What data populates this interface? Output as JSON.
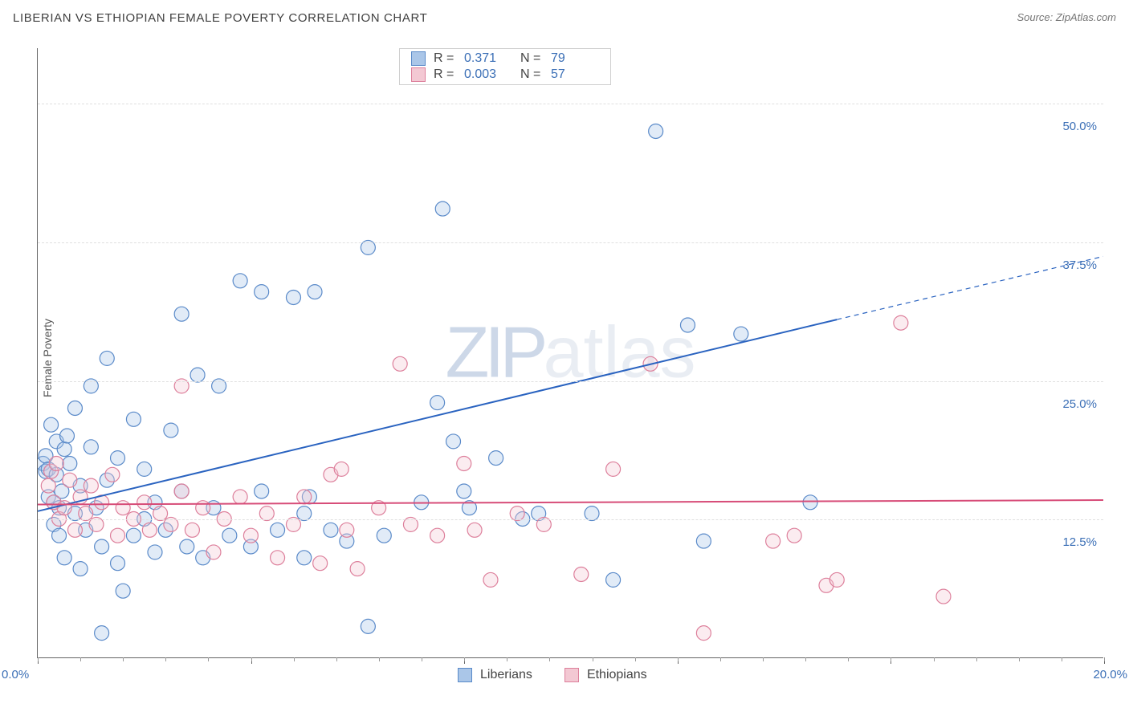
{
  "title": "LIBERIAN VS ETHIOPIAN FEMALE POVERTY CORRELATION CHART",
  "source": "Source: ZipAtlas.com",
  "yaxis_label": "Female Poverty",
  "watermark_zip": "ZIP",
  "watermark_atlas": "atlas",
  "chart": {
    "type": "scatter",
    "xlim": [
      0,
      20
    ],
    "ylim": [
      0,
      55
    ],
    "x_tick_left": "0.0%",
    "x_tick_right": "20.0%",
    "y_ticks": [
      {
        "v": 12.5,
        "label": "12.5%"
      },
      {
        "v": 25.0,
        "label": "25.0%"
      },
      {
        "v": 37.5,
        "label": "37.5%"
      },
      {
        "v": 50.0,
        "label": "50.0%"
      }
    ],
    "x_major_ticks": [
      0,
      4,
      8,
      12,
      16,
      20
    ],
    "x_minor_step": 0.8,
    "background_color": "#ffffff",
    "grid_color": "#e0e0e0",
    "marker_radius": 9,
    "marker_stroke_width": 1.2,
    "marker_fill_opacity": 0.35,
    "line_width": 2,
    "series": [
      {
        "name": "Liberians",
        "fill": "#aac6e8",
        "stroke": "#5a8ac9",
        "line_color": "#2a63c0",
        "R": "0.371",
        "N": "79",
        "trend": {
          "x1": 0,
          "y1": 13.2,
          "x2": 15,
          "y2": 30.5,
          "dash_x2": 20,
          "dash_y2": 36.2
        },
        "points": [
          [
            0.1,
            17.5
          ],
          [
            0.15,
            16.8
          ],
          [
            0.15,
            18.2
          ],
          [
            0.2,
            14.5
          ],
          [
            0.2,
            17.0
          ],
          [
            0.25,
            21.0
          ],
          [
            0.3,
            12.0
          ],
          [
            0.3,
            14.0
          ],
          [
            0.35,
            16.5
          ],
          [
            0.35,
            19.5
          ],
          [
            0.4,
            11.0
          ],
          [
            0.4,
            13.5
          ],
          [
            0.45,
            15.0
          ],
          [
            0.5,
            9.0
          ],
          [
            0.5,
            18.8
          ],
          [
            0.55,
            20.0
          ],
          [
            0.6,
            17.5
          ],
          [
            0.7,
            13.0
          ],
          [
            0.7,
            22.5
          ],
          [
            0.8,
            15.5
          ],
          [
            0.8,
            8.0
          ],
          [
            0.9,
            11.5
          ],
          [
            1.0,
            19.0
          ],
          [
            1.0,
            24.5
          ],
          [
            1.1,
            13.5
          ],
          [
            1.2,
            2.2
          ],
          [
            1.2,
            10.0
          ],
          [
            1.3,
            16.0
          ],
          [
            1.3,
            27.0
          ],
          [
            1.5,
            8.5
          ],
          [
            1.5,
            18.0
          ],
          [
            1.6,
            6.0
          ],
          [
            1.8,
            11.0
          ],
          [
            1.8,
            21.5
          ],
          [
            2.0,
            12.5
          ],
          [
            2.0,
            17.0
          ],
          [
            2.2,
            9.5
          ],
          [
            2.2,
            14.0
          ],
          [
            2.4,
            11.5
          ],
          [
            2.5,
            20.5
          ],
          [
            2.7,
            15.0
          ],
          [
            2.7,
            31.0
          ],
          [
            2.8,
            10.0
          ],
          [
            3.0,
            25.5
          ],
          [
            3.1,
            9.0
          ],
          [
            3.3,
            13.5
          ],
          [
            3.4,
            24.5
          ],
          [
            3.6,
            11.0
          ],
          [
            3.8,
            34.0
          ],
          [
            4.0,
            10.0
          ],
          [
            4.2,
            15.0
          ],
          [
            4.2,
            33.0
          ],
          [
            4.5,
            11.5
          ],
          [
            4.8,
            32.5
          ],
          [
            5.0,
            9.0
          ],
          [
            5.0,
            13.0
          ],
          [
            5.1,
            14.5
          ],
          [
            5.2,
            33.0
          ],
          [
            5.5,
            11.5
          ],
          [
            5.8,
            10.5
          ],
          [
            6.2,
            2.8
          ],
          [
            6.2,
            37.0
          ],
          [
            6.5,
            11.0
          ],
          [
            7.2,
            14.0
          ],
          [
            7.5,
            23.0
          ],
          [
            7.6,
            40.5
          ],
          [
            7.8,
            19.5
          ],
          [
            8.0,
            15.0
          ],
          [
            8.1,
            13.5
          ],
          [
            8.6,
            18.0
          ],
          [
            9.1,
            12.5
          ],
          [
            9.4,
            13.0
          ],
          [
            10.4,
            13.0
          ],
          [
            10.8,
            7.0
          ],
          [
            11.6,
            47.5
          ],
          [
            12.2,
            30.0
          ],
          [
            12.5,
            10.5
          ],
          [
            13.2,
            29.2
          ],
          [
            14.5,
            14.0
          ]
        ]
      },
      {
        "name": "Ethiopians",
        "fill": "#f3c8d3",
        "stroke": "#dd7f9b",
        "line_color": "#d74c78",
        "R": "0.003",
        "N": "57",
        "trend": {
          "x1": 0,
          "y1": 13.8,
          "x2": 20,
          "y2": 14.2
        },
        "points": [
          [
            0.2,
            15.5
          ],
          [
            0.25,
            16.8
          ],
          [
            0.3,
            14.0
          ],
          [
            0.35,
            17.5
          ],
          [
            0.4,
            12.5
          ],
          [
            0.5,
            13.5
          ],
          [
            0.6,
            16.0
          ],
          [
            0.7,
            11.5
          ],
          [
            0.8,
            14.5
          ],
          [
            0.9,
            13.0
          ],
          [
            1.0,
            15.5
          ],
          [
            1.1,
            12.0
          ],
          [
            1.2,
            14.0
          ],
          [
            1.4,
            16.5
          ],
          [
            1.5,
            11.0
          ],
          [
            1.6,
            13.5
          ],
          [
            1.8,
            12.5
          ],
          [
            2.0,
            14.0
          ],
          [
            2.1,
            11.5
          ],
          [
            2.3,
            13.0
          ],
          [
            2.5,
            12.0
          ],
          [
            2.7,
            15.0
          ],
          [
            2.7,
            24.5
          ],
          [
            2.9,
            11.5
          ],
          [
            3.1,
            13.5
          ],
          [
            3.3,
            9.5
          ],
          [
            3.5,
            12.5
          ],
          [
            3.8,
            14.5
          ],
          [
            4.0,
            11.0
          ],
          [
            4.3,
            13.0
          ],
          [
            4.5,
            9.0
          ],
          [
            4.8,
            12.0
          ],
          [
            5.0,
            14.5
          ],
          [
            5.3,
            8.5
          ],
          [
            5.5,
            16.5
          ],
          [
            5.7,
            17.0
          ],
          [
            5.8,
            11.5
          ],
          [
            6.0,
            8.0
          ],
          [
            6.4,
            13.5
          ],
          [
            6.8,
            26.5
          ],
          [
            7.0,
            12.0
          ],
          [
            7.5,
            11.0
          ],
          [
            8.0,
            17.5
          ],
          [
            8.2,
            11.5
          ],
          [
            8.5,
            7.0
          ],
          [
            9.0,
            13.0
          ],
          [
            9.5,
            12.0
          ],
          [
            10.2,
            7.5
          ],
          [
            10.8,
            17.0
          ],
          [
            11.5,
            26.5
          ],
          [
            12.5,
            2.2
          ],
          [
            13.8,
            10.5
          ],
          [
            14.2,
            11.0
          ],
          [
            14.8,
            6.5
          ],
          [
            15.0,
            7.0
          ],
          [
            16.2,
            30.2
          ],
          [
            17.0,
            5.5
          ]
        ]
      }
    ]
  },
  "legend_bottom": [
    {
      "label": "Liberians",
      "fill": "#aac6e8",
      "stroke": "#5a8ac9"
    },
    {
      "label": "Ethiopians",
      "fill": "#f3c8d3",
      "stroke": "#dd7f9b"
    }
  ]
}
